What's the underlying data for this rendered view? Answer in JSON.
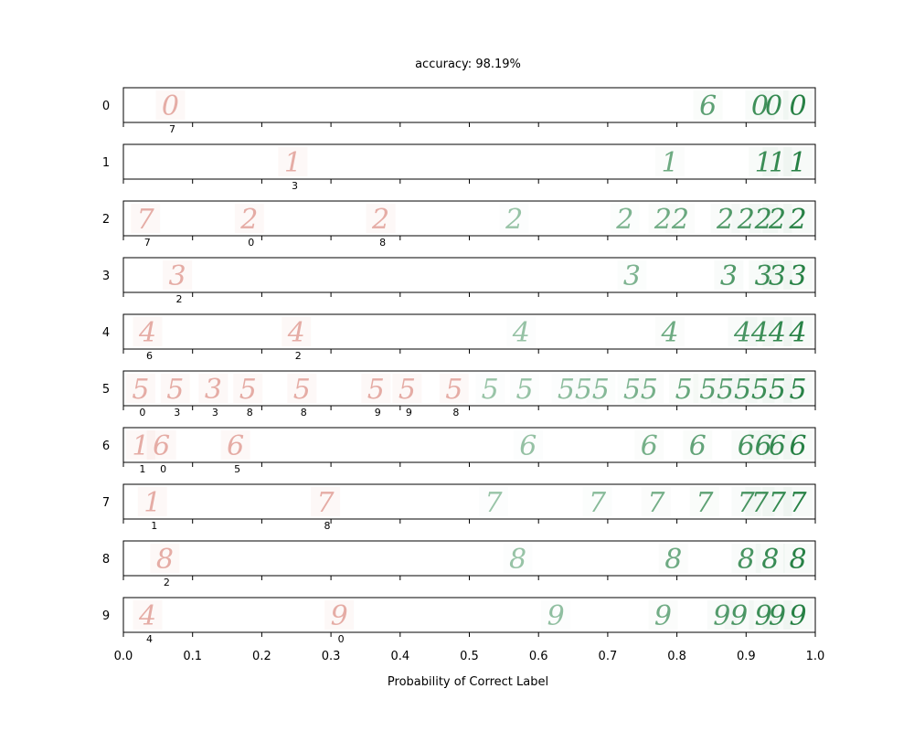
{
  "chart_data": {
    "type": "scatter",
    "title": "accuracy: 98.19%",
    "xlabel": "Probability of Correct Label",
    "xlim": [
      0.0,
      1.0
    ],
    "xticks": [
      "0.0",
      "0.1",
      "0.2",
      "0.3",
      "0.4",
      "0.5",
      "0.6",
      "0.7",
      "0.8",
      "0.9",
      "1.0"
    ],
    "correct_color": "#1a7a3a",
    "incorrect_color": "#d9837a",
    "rows": [
      {
        "label": "0",
        "incorrect": [
          {
            "p": 0.068,
            "glyph": "0",
            "predicted": "7"
          }
        ],
        "correct": [
          {
            "p": 0.845,
            "glyph": "6"
          },
          {
            "p": 0.92,
            "glyph": "0"
          },
          {
            "p": 0.94,
            "glyph": "0"
          },
          {
            "p": 0.975,
            "glyph": "0"
          }
        ]
      },
      {
        "label": "1",
        "incorrect": [
          {
            "p": 0.245,
            "glyph": "1",
            "predicted": "3"
          }
        ],
        "correct": [
          {
            "p": 0.79,
            "glyph": "1"
          },
          {
            "p": 0.925,
            "glyph": "1"
          },
          {
            "p": 0.945,
            "glyph": "1"
          },
          {
            "p": 0.975,
            "glyph": "1"
          }
        ]
      },
      {
        "label": "2",
        "incorrect": [
          {
            "p": 0.032,
            "glyph": "7",
            "predicted": "7"
          },
          {
            "p": 0.182,
            "glyph": "2",
            "predicted": "0"
          },
          {
            "p": 0.372,
            "glyph": "2",
            "predicted": "8"
          }
        ],
        "correct": [
          {
            "p": 0.565,
            "glyph": "2"
          },
          {
            "p": 0.725,
            "glyph": "2"
          },
          {
            "p": 0.78,
            "glyph": "2"
          },
          {
            "p": 0.805,
            "glyph": "2"
          },
          {
            "p": 0.87,
            "glyph": "2"
          },
          {
            "p": 0.9,
            "glyph": "2"
          },
          {
            "p": 0.925,
            "glyph": "2"
          },
          {
            "p": 0.945,
            "glyph": "2"
          },
          {
            "p": 0.975,
            "glyph": "2"
          }
        ]
      },
      {
        "label": "3",
        "incorrect": [
          {
            "p": 0.078,
            "glyph": "3",
            "predicted": "2"
          }
        ],
        "correct": [
          {
            "p": 0.735,
            "glyph": "3"
          },
          {
            "p": 0.875,
            "glyph": "3"
          },
          {
            "p": 0.925,
            "glyph": "3"
          },
          {
            "p": 0.945,
            "glyph": "3"
          },
          {
            "p": 0.975,
            "glyph": "3"
          }
        ]
      },
      {
        "label": "4",
        "incorrect": [
          {
            "p": 0.035,
            "glyph": "4",
            "predicted": "6"
          },
          {
            "p": 0.25,
            "glyph": "4",
            "predicted": "2"
          }
        ],
        "correct": [
          {
            "p": 0.575,
            "glyph": "4"
          },
          {
            "p": 0.79,
            "glyph": "4"
          },
          {
            "p": 0.895,
            "glyph": "4"
          },
          {
            "p": 0.92,
            "glyph": "4"
          },
          {
            "p": 0.945,
            "glyph": "4"
          },
          {
            "p": 0.975,
            "glyph": "4"
          }
        ]
      },
      {
        "label": "5",
        "incorrect": [
          {
            "p": 0.025,
            "glyph": "5",
            "predicted": "0"
          },
          {
            "p": 0.075,
            "glyph": "5",
            "predicted": "3"
          },
          {
            "p": 0.13,
            "glyph": "3",
            "predicted": "3"
          },
          {
            "p": 0.18,
            "glyph": "5",
            "predicted": "8"
          },
          {
            "p": 0.258,
            "glyph": "5",
            "predicted": "8"
          },
          {
            "p": 0.365,
            "glyph": "5",
            "predicted": "9"
          },
          {
            "p": 0.41,
            "glyph": "5",
            "predicted": "9"
          },
          {
            "p": 0.478,
            "glyph": "5",
            "predicted": "8"
          }
        ],
        "correct": [
          {
            "p": 0.53,
            "glyph": "5"
          },
          {
            "p": 0.58,
            "glyph": "5"
          },
          {
            "p": 0.64,
            "glyph": "5"
          },
          {
            "p": 0.665,
            "glyph": "5"
          },
          {
            "p": 0.69,
            "glyph": "5"
          },
          {
            "p": 0.735,
            "glyph": "5"
          },
          {
            "p": 0.76,
            "glyph": "5"
          },
          {
            "p": 0.81,
            "glyph": "5"
          },
          {
            "p": 0.845,
            "glyph": "5"
          },
          {
            "p": 0.87,
            "glyph": "5"
          },
          {
            "p": 0.895,
            "glyph": "5"
          },
          {
            "p": 0.92,
            "glyph": "5"
          },
          {
            "p": 0.945,
            "glyph": "5"
          },
          {
            "p": 0.975,
            "glyph": "5"
          }
        ]
      },
      {
        "label": "6",
        "incorrect": [
          {
            "p": 0.025,
            "glyph": "1",
            "predicted": "1"
          },
          {
            "p": 0.055,
            "glyph": "6",
            "predicted": "0"
          },
          {
            "p": 0.162,
            "glyph": "6",
            "predicted": "5"
          }
        ],
        "correct": [
          {
            "p": 0.585,
            "glyph": "6"
          },
          {
            "p": 0.76,
            "glyph": "6"
          },
          {
            "p": 0.83,
            "glyph": "6"
          },
          {
            "p": 0.9,
            "glyph": "6"
          },
          {
            "p": 0.925,
            "glyph": "6"
          },
          {
            "p": 0.945,
            "glyph": "6"
          },
          {
            "p": 0.975,
            "glyph": "6"
          }
        ]
      },
      {
        "label": "7",
        "incorrect": [
          {
            "p": 0.042,
            "glyph": "1",
            "predicted": "1"
          },
          {
            "p": 0.292,
            "glyph": "7",
            "predicted": "8"
          }
        ],
        "correct": [
          {
            "p": 0.535,
            "glyph": "7"
          },
          {
            "p": 0.685,
            "glyph": "7"
          },
          {
            "p": 0.77,
            "glyph": "7"
          },
          {
            "p": 0.84,
            "glyph": "7"
          },
          {
            "p": 0.9,
            "glyph": "7"
          },
          {
            "p": 0.92,
            "glyph": "7"
          },
          {
            "p": 0.945,
            "glyph": "7"
          },
          {
            "p": 0.975,
            "glyph": "7"
          }
        ]
      },
      {
        "label": "8",
        "incorrect": [
          {
            "p": 0.06,
            "glyph": "8",
            "predicted": "2"
          }
        ],
        "correct": [
          {
            "p": 0.57,
            "glyph": "8"
          },
          {
            "p": 0.795,
            "glyph": "8"
          },
          {
            "p": 0.9,
            "glyph": "8"
          },
          {
            "p": 0.935,
            "glyph": "8"
          },
          {
            "p": 0.975,
            "glyph": "8"
          }
        ]
      },
      {
        "label": "9",
        "incorrect": [
          {
            "p": 0.035,
            "glyph": "4",
            "predicted": "4"
          },
          {
            "p": 0.312,
            "glyph": "9",
            "predicted": "0"
          }
        ],
        "correct": [
          {
            "p": 0.625,
            "glyph": "9"
          },
          {
            "p": 0.78,
            "glyph": "9"
          },
          {
            "p": 0.865,
            "glyph": "9"
          },
          {
            "p": 0.89,
            "glyph": "9"
          },
          {
            "p": 0.925,
            "glyph": "9"
          },
          {
            "p": 0.945,
            "glyph": "9"
          },
          {
            "p": 0.975,
            "glyph": "9"
          }
        ]
      }
    ]
  }
}
